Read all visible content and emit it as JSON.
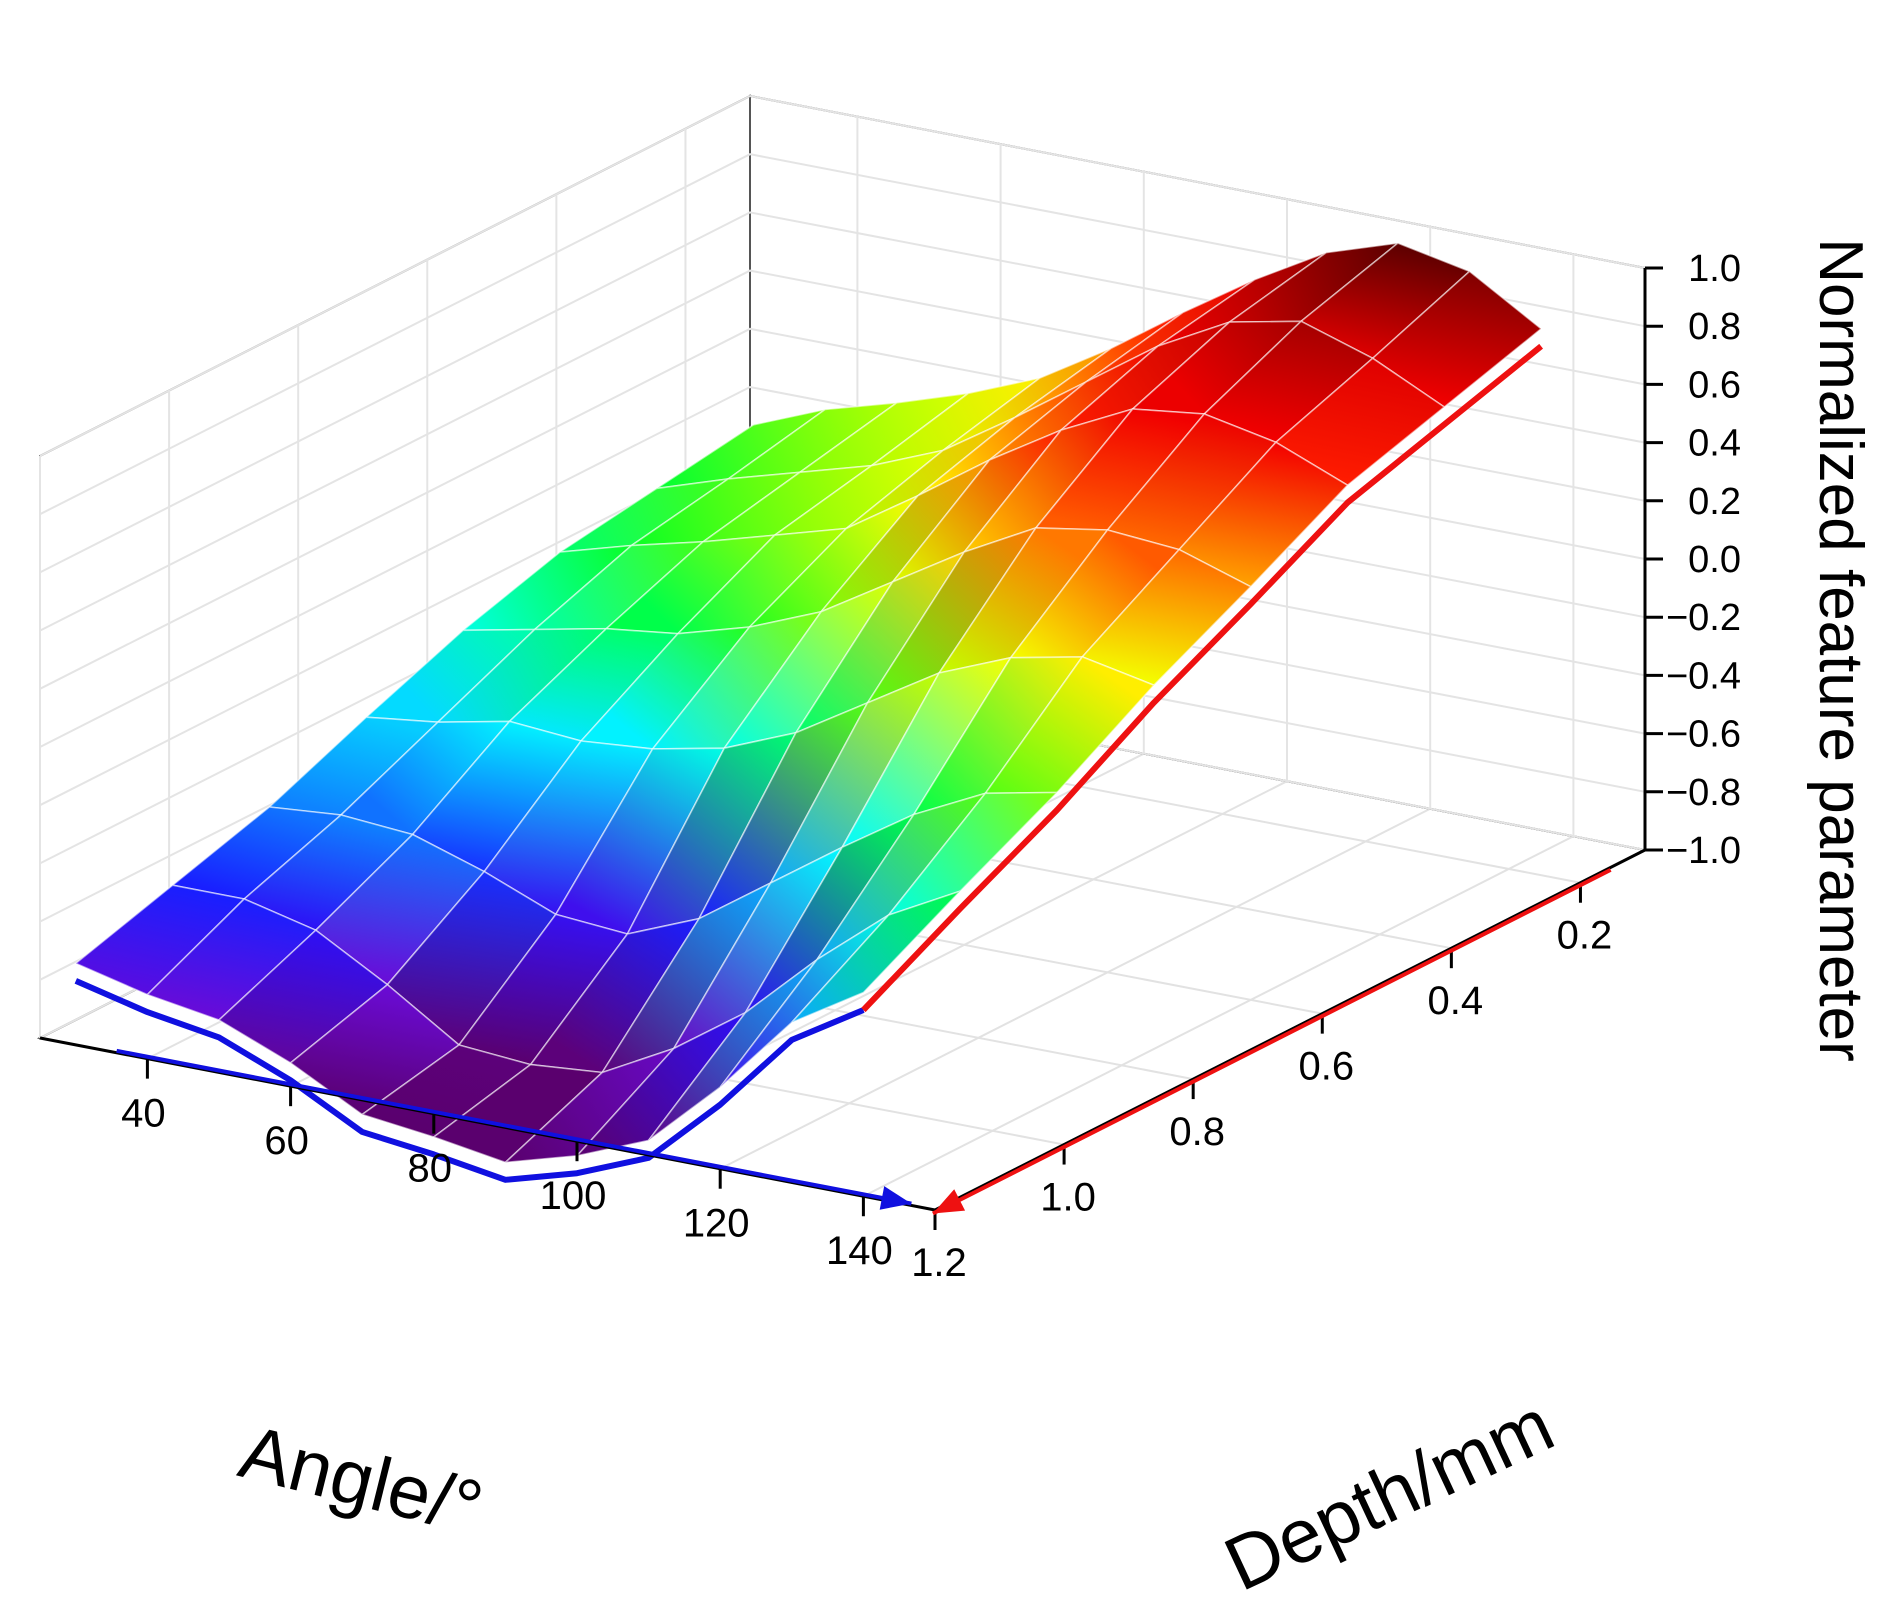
{
  "chart_data": {
    "type": "surface3d",
    "title": "",
    "xlabel": "Angle/°",
    "ylabel": "Depth/mm",
    "zlabel": "Normalized feature parameter",
    "x_ticks": [
      "40",
      "60",
      "80",
      "100",
      "120",
      "140"
    ],
    "y_ticks": [
      "0.2",
      "0.4",
      "0.6",
      "0.8",
      "1.0",
      "1.2"
    ],
    "z_ticks": [
      "1.0",
      "0.8",
      "0.6",
      "0.4",
      "0.2",
      "0.0",
      "−0.2",
      "−0.4",
      "−0.6",
      "−0.8",
      "−1.0"
    ],
    "xlim": [
      25,
      150
    ],
    "ylim": [
      0.1,
      1.2
    ],
    "zlim": [
      -1.0,
      1.0
    ],
    "colormap": [
      "#5a006e",
      "#6a0bd8",
      "#1a12ff",
      "#0aa8ff",
      "#00ffff",
      "#00ff28",
      "#a6ff00",
      "#ffff00",
      "#ff8c00",
      "#ff0000",
      "#e00000",
      "#5c0000"
    ],
    "angle_values": [
      30,
      40,
      50,
      60,
      70,
      80,
      90,
      100,
      110,
      120,
      130,
      140
    ],
    "depth_values": [
      0.15,
      0.3,
      0.45,
      0.6,
      0.75,
      0.9,
      1.05,
      1.2
    ],
    "z_values": [
      [
        -0.05,
        0.05,
        0.12,
        0.2,
        0.3,
        0.45,
        0.62,
        0.78,
        0.92,
        1.0,
        0.95,
        0.8
      ],
      [
        -0.1,
        -0.02,
        0.05,
        0.12,
        0.22,
        0.38,
        0.55,
        0.72,
        0.85,
        0.9,
        0.82,
        0.7
      ],
      [
        -0.15,
        -0.08,
        -0.02,
        0.05,
        0.12,
        0.28,
        0.45,
        0.6,
        0.72,
        0.75,
        0.7,
        0.6
      ],
      [
        -0.25,
        -0.2,
        -0.15,
        -0.12,
        -0.05,
        0.05,
        0.2,
        0.35,
        0.48,
        0.52,
        0.5,
        0.42
      ],
      [
        -0.38,
        -0.35,
        -0.3,
        -0.32,
        -0.3,
        -0.25,
        -0.15,
        0.0,
        0.15,
        0.25,
        0.3,
        0.25
      ],
      [
        -0.52,
        -0.5,
        -0.52,
        -0.6,
        -0.7,
        -0.72,
        -0.62,
        -0.45,
        -0.28,
        -0.12,
        0.0,
        0.05
      ],
      [
        -0.62,
        -0.62,
        -0.68,
        -0.82,
        -0.98,
        -1.0,
        -0.98,
        -0.85,
        -0.68,
        -0.45,
        -0.25,
        -0.12
      ],
      [
        -0.72,
        -0.78,
        -0.82,
        -0.92,
        -1.05,
        -1.08,
        -1.12,
        -1.05,
        -0.95,
        -0.72,
        -0.45,
        -0.3
      ]
    ],
    "arrows": [
      {
        "axis": "angle",
        "color": "#1010e0"
      },
      {
        "axis": "depth",
        "color": "#ee1111"
      }
    ]
  }
}
